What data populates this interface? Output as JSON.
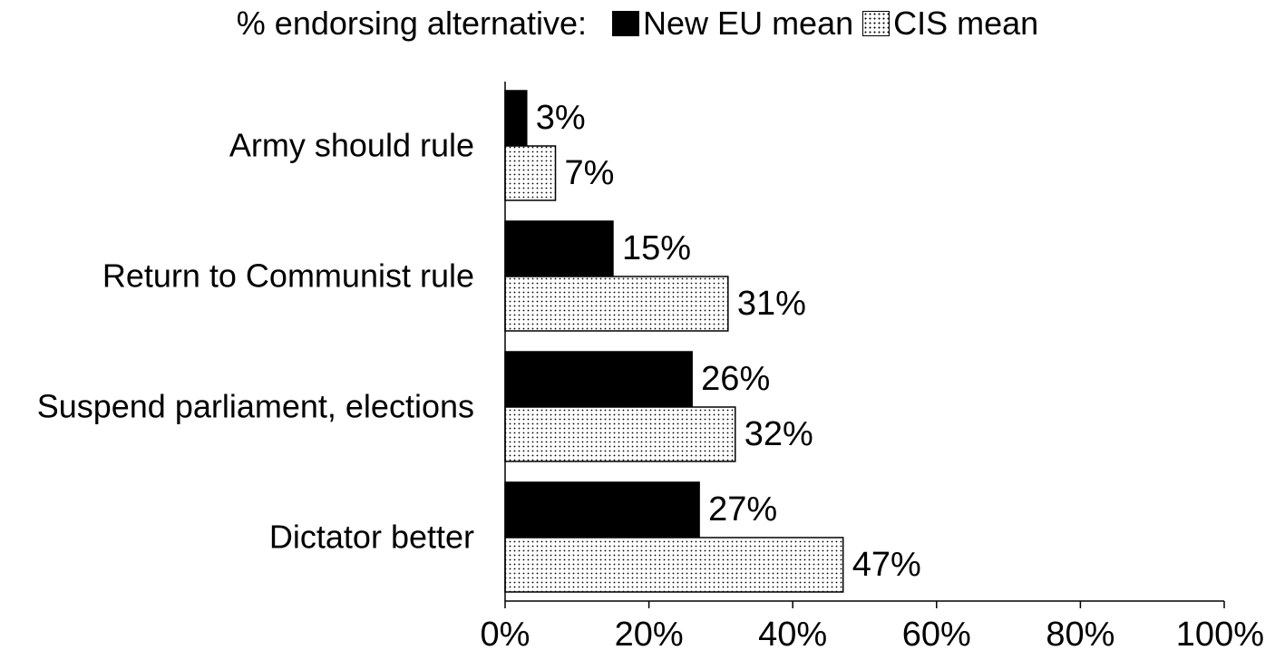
{
  "chart_data": {
    "type": "bar",
    "orientation": "horizontal",
    "categories": [
      "Army should rule",
      "Return to Communist rule",
      "Suspend parliament, elections",
      "Dictator better"
    ],
    "series": [
      {
        "name": "New EU mean",
        "values": [
          3,
          15,
          26,
          27
        ],
        "labels": [
          "3%",
          "15%",
          "26%",
          "27%"
        ],
        "pattern": "solid",
        "color": "#000000"
      },
      {
        "name": "CIS mean",
        "values": [
          7,
          31,
          32,
          47
        ],
        "labels": [
          "7%",
          "31%",
          "32%",
          "47%"
        ],
        "pattern": "dotted",
        "color": "#ffffff"
      }
    ],
    "legend_title": "% endorsing alternative:",
    "legend_placement": "top",
    "xlim": [
      0,
      100
    ],
    "xticks": [
      0,
      20,
      40,
      60,
      80,
      100
    ],
    "xtick_labels": [
      "0%",
      "20%",
      "40%",
      "60%",
      "80%",
      "100%"
    ],
    "grid": false
  }
}
